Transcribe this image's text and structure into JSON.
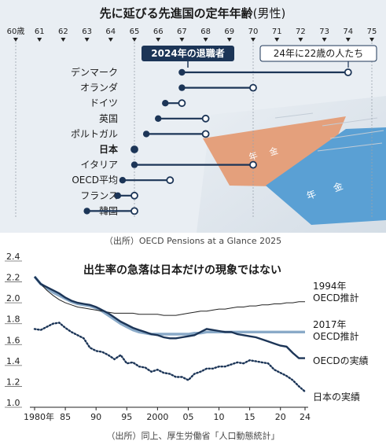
{
  "chart_data": [
    {
      "type": "dumbbell",
      "title": "先に延びる先進国の定年年齢",
      "title_suffix": "(男性)",
      "x_ticks": [
        60,
        61,
        62,
        63,
        64,
        65,
        66,
        67,
        68,
        69,
        70,
        71,
        72,
        73,
        74,
        75
      ],
      "x_first_tick_label": "60歳",
      "xlim": [
        60,
        75
      ],
      "series": [
        {
          "name": "2024年の退職者",
          "marker": "filled"
        },
        {
          "name": "24年に22歳の人たち",
          "marker": "open"
        }
      ],
      "countries": [
        {
          "name": "デンマーク",
          "current": 67,
          "future": 74
        },
        {
          "name": "オランダ",
          "current": 67,
          "future": 70
        },
        {
          "name": "ドイツ",
          "current": 66.3,
          "future": 67
        },
        {
          "name": "英国",
          "current": 66,
          "future": 68
        },
        {
          "name": "ポルトガル",
          "current": 65.5,
          "future": 68
        },
        {
          "name": "日本",
          "current": 65,
          "future": 65,
          "highlight": true
        },
        {
          "name": "イタリア",
          "current": 65,
          "future": 70
        },
        {
          "name": "OECD平均",
          "current": 64.5,
          "future": 66.5
        },
        {
          "name": "フランス",
          "current": 64.3,
          "future": 65
        },
        {
          "name": "韓国",
          "current": 63,
          "future": 65
        }
      ],
      "decoration_text": [
        "年",
        "金",
        "年",
        "金"
      ]
    },
    {
      "type": "line",
      "title": "出生率の急落は日本だけの現象ではない",
      "ylim": [
        1.0,
        2.4
      ],
      "y_ticks": [
        "1.0",
        "1.2",
        "1.4",
        "1.6",
        "1.8",
        "2.0",
        "2.2",
        "2.4"
      ],
      "xlim": [
        1980,
        2024
      ],
      "x_tick_values": [
        1980,
        1985,
        1990,
        1995,
        2000,
        2005,
        2010,
        2015,
        2020,
        2024
      ],
      "x_tick_labels": [
        "1980年",
        "85",
        "90",
        "95",
        "2000",
        "05",
        "10",
        "15",
        "20",
        "24"
      ],
      "x": [
        1980,
        1981,
        1982,
        1983,
        1984,
        1985,
        1986,
        1987,
        1988,
        1989,
        1990,
        1991,
        1992,
        1993,
        1994,
        1995,
        1996,
        1997,
        1998,
        1999,
        2000,
        2001,
        2002,
        2003,
        2004,
        2005,
        2006,
        2007,
        2008,
        2009,
        2010,
        2011,
        2012,
        2013,
        2014,
        2015,
        2016,
        2017,
        2018,
        2019,
        2020,
        2021,
        2022,
        2023,
        2024
      ],
      "series": [
        {
          "name": "OECDの実績",
          "values": [
            2.25,
            2.18,
            2.15,
            2.12,
            2.09,
            2.05,
            2.02,
            2.0,
            1.99,
            1.98,
            1.96,
            1.93,
            1.9,
            1.86,
            1.82,
            1.79,
            1.76,
            1.74,
            1.72,
            1.7,
            1.69,
            1.67,
            1.66,
            1.66,
            1.67,
            1.68,
            1.69,
            1.72,
            1.75,
            1.74,
            1.73,
            1.72,
            1.72,
            1.7,
            1.69,
            1.68,
            1.67,
            1.65,
            1.63,
            1.61,
            1.59,
            1.58,
            1.52,
            1.47,
            1.47
          ]
        },
        {
          "name": "日本の実績",
          "values": [
            1.75,
            1.74,
            1.77,
            1.8,
            1.81,
            1.76,
            1.72,
            1.69,
            1.66,
            1.57,
            1.54,
            1.53,
            1.5,
            1.46,
            1.5,
            1.42,
            1.43,
            1.39,
            1.38,
            1.34,
            1.36,
            1.33,
            1.32,
            1.29,
            1.29,
            1.26,
            1.32,
            1.34,
            1.37,
            1.37,
            1.39,
            1.39,
            1.41,
            1.43,
            1.42,
            1.45,
            1.44,
            1.43,
            1.42,
            1.36,
            1.33,
            1.3,
            1.26,
            1.2,
            1.15
          ]
        },
        {
          "name": "1994年 OECD推計",
          "label_lines": [
            "1994年",
            "OECD推計"
          ],
          "values": [
            2.25,
            2.18,
            2.12,
            2.07,
            2.03,
            2.0,
            1.98,
            1.96,
            1.95,
            1.94,
            1.93,
            1.92,
            1.91,
            1.9,
            1.9,
            1.9,
            1.9,
            1.89,
            1.89,
            1.89,
            1.89,
            1.88,
            1.88,
            1.88,
            1.89,
            1.9,
            1.91,
            1.92,
            1.92,
            1.93,
            1.94,
            1.94,
            1.95,
            1.96,
            1.96,
            1.97,
            1.97,
            1.98,
            1.98,
            1.99,
            1.99,
            2.0,
            2.0,
            2.01,
            2.01
          ]
        },
        {
          "name": "2017年 OECD推計",
          "label_lines": [
            "2017年",
            "OECD推計"
          ],
          "values": [
            2.25,
            2.18,
            2.14,
            2.1,
            2.07,
            2.04,
            2.01,
            1.99,
            1.98,
            1.97,
            1.95,
            1.92,
            1.88,
            1.84,
            1.8,
            1.77,
            1.74,
            1.72,
            1.71,
            1.7,
            1.7,
            1.7,
            1.7,
            1.7,
            1.7,
            1.7,
            1.71,
            1.71,
            1.72,
            1.72,
            1.72,
            1.72,
            1.72,
            1.72,
            1.72,
            1.72,
            1.72,
            1.72,
            1.72,
            1.72,
            1.72,
            1.72,
            1.72,
            1.72,
            1.72
          ]
        }
      ]
    }
  ],
  "sources": {
    "panel1": "（出所）OECD Pensions at a Glance 2025",
    "panel2": "（出所）同上、厚生労働省「人口動態統計」"
  },
  "colors": {
    "navy": "#1c3557",
    "panel_bg": "#e9eef3",
    "oecd_actual": "#1c3557",
    "japan_actual": "#1c3557",
    "proj_1994": "#222222",
    "proj_2017": "#8aaac8",
    "deco_orange": "#e4a07c",
    "deco_blue": "#5aa0d4"
  }
}
